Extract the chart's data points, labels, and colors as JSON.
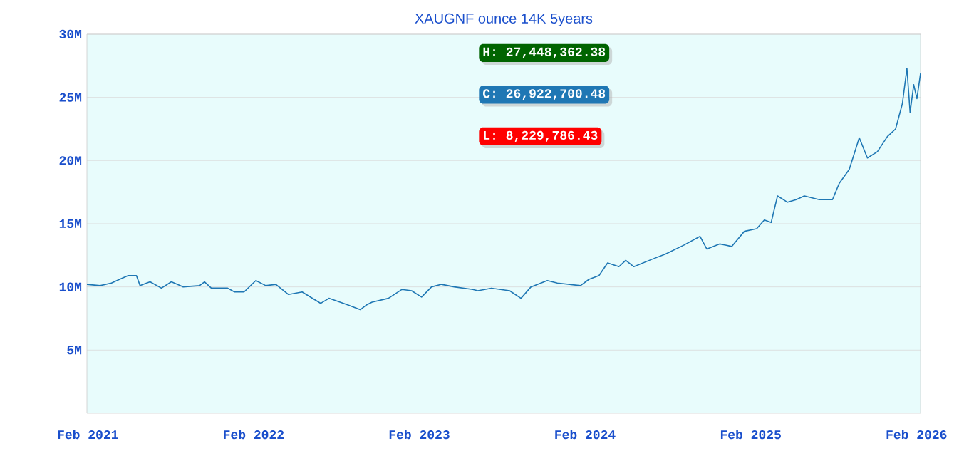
{
  "chart_data": {
    "type": "line",
    "title": "XAUGNF ounce 14K 5years",
    "annotations": [
      "H: 27,448,362.38",
      "C: 26,922,700.48",
      "L: 8,229,786.43"
    ],
    "xlim": [
      "2021-01-30",
      "2026-02-10"
    ],
    "ylim": [
      0,
      30000000
    ],
    "xticks": [
      {
        "value": "2021-02-01",
        "label": "Feb 2021"
      },
      {
        "value": "2022-02-01",
        "label": "Feb 2022"
      },
      {
        "value": "2023-02-01",
        "label": "Feb 2023"
      },
      {
        "value": "2024-02-01",
        "label": "Feb 2024"
      },
      {
        "value": "2025-02-01",
        "label": "Feb 2025"
      },
      {
        "value": "2026-02-01",
        "label": "Feb 2026"
      }
    ],
    "yticks": [
      {
        "value": 5000000,
        "label": "5M"
      },
      {
        "value": 10000000,
        "label": "10M"
      },
      {
        "value": 15000000,
        "label": "15M"
      },
      {
        "value": 20000000,
        "label": "20M"
      },
      {
        "value": 25000000,
        "label": "25M"
      },
      {
        "value": 30000000,
        "label": "30M"
      }
    ],
    "grid": "y",
    "series": [
      {
        "color": "#1f77b4",
        "x": [
          "2021-01-30",
          "2021-02-28",
          "2021-03-25",
          "2021-04-12",
          "2021-05-01",
          "2021-05-19",
          "2021-05-27",
          "2021-06-18",
          "2021-07-13",
          "2021-08-04",
          "2021-08-30",
          "2021-10-05",
          "2021-10-16",
          "2021-10-31",
          "2021-12-06",
          "2021-12-21",
          "2022-01-11",
          "2022-02-06",
          "2022-02-28",
          "2022-03-22",
          "2022-04-19",
          "2022-05-19",
          "2022-06-29",
          "2022-07-17",
          "2022-08-26",
          "2022-09-24",
          "2022-10-09",
          "2022-10-20",
          "2022-11-25",
          "2022-12-25",
          "2023-01-15",
          "2023-02-06",
          "2023-02-28",
          "2023-03-22",
          "2023-04-19",
          "2023-05-30",
          "2023-06-10",
          "2023-07-10",
          "2023-08-19",
          "2023-09-13",
          "2023-10-05",
          "2023-11-10",
          "2023-12-02",
          "2024-01-22",
          "2024-02-10",
          "2024-03-03",
          "2024-03-22",
          "2024-04-16",
          "2024-05-01",
          "2024-05-19",
          "2024-06-29",
          "2024-07-28",
          "2024-09-06",
          "2024-10-12",
          "2024-10-27",
          "2024-11-25",
          "2024-12-21",
          "2025-01-18",
          "2025-02-14",
          "2025-03-03",
          "2025-03-18",
          "2025-04-01",
          "2025-04-23",
          "2025-05-12",
          "2025-05-30",
          "2025-07-02",
          "2025-07-31",
          "2025-08-15",
          "2025-09-06",
          "2025-09-28",
          "2025-10-16",
          "2025-11-07",
          "2025-11-29",
          "2025-12-17",
          "2026-01-01",
          "2026-01-11",
          "2026-01-18",
          "2026-01-26",
          "2026-02-02",
          "2026-02-10"
        ],
        "values": [
          10200000,
          10100000,
          10300000,
          10600000,
          10900000,
          10900000,
          10100000,
          10400000,
          9900000,
          10400000,
          10000000,
          10100000,
          10400000,
          9900000,
          9900000,
          9600000,
          9600000,
          10500000,
          10100000,
          10200000,
          9400000,
          9600000,
          8700000,
          9100000,
          8600000,
          8200000,
          8600000,
          8800000,
          9100000,
          9800000,
          9700000,
          9200000,
          10000000,
          10200000,
          10000000,
          9800000,
          9700000,
          9900000,
          9700000,
          9100000,
          10000000,
          10500000,
          10300000,
          10100000,
          10600000,
          10900000,
          11900000,
          11600000,
          12100000,
          11600000,
          12200000,
          12600000,
          13300000,
          14000000,
          13000000,
          13400000,
          13200000,
          14400000,
          14600000,
          15300000,
          15100000,
          17200000,
          16700000,
          16900000,
          17200000,
          16900000,
          16900000,
          18200000,
          19300000,
          21800000,
          20200000,
          20700000,
          21900000,
          22500000,
          24500000,
          27300000,
          23800000,
          26000000,
          24900000,
          26900000
        ]
      }
    ]
  }
}
